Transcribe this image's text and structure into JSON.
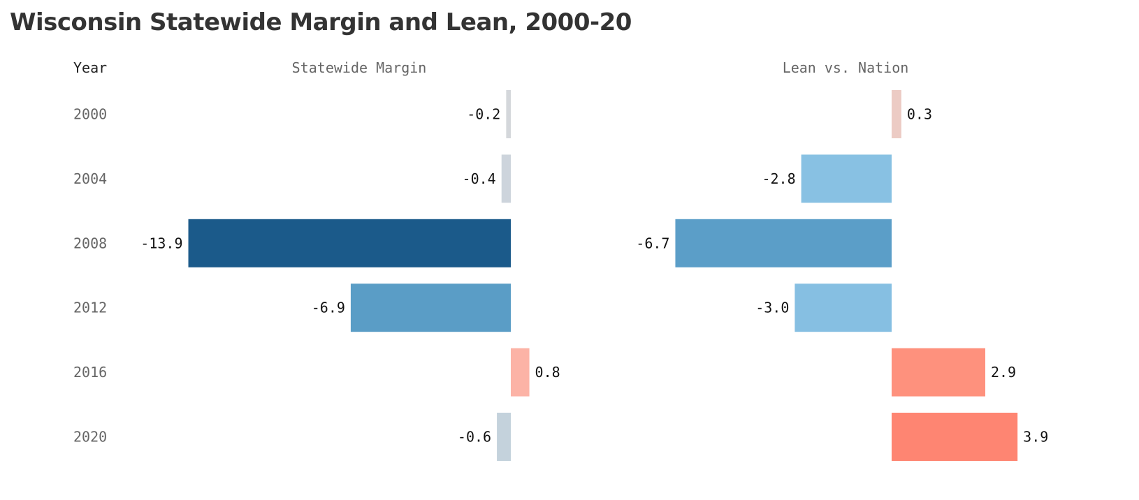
{
  "title": "Wisconsin Statewide Margin and Lean, 2000-20",
  "chart_data": {
    "type": "bar",
    "title": "Wisconsin Statewide Margin and Lean, 2000-20",
    "year_header": "Year",
    "categories": [
      "2000",
      "2004",
      "2008",
      "2012",
      "2016",
      "2020"
    ],
    "series": [
      {
        "name": "Statewide Margin",
        "values": [
          -0.2,
          -0.4,
          -13.9,
          -6.9,
          0.8,
          -0.6
        ],
        "labels": [
          "-0.2",
          "-0.4",
          "-13.9",
          "-6.9",
          "0.8",
          "-0.6"
        ],
        "colors": [
          "#d4d7db",
          "#cdd4dc",
          "#1b5a8a",
          "#5a9dc6",
          "#fcb3a6",
          "#c4d2dc"
        ]
      },
      {
        "name": "Lean vs. Nation",
        "values": [
          0.3,
          -2.8,
          -6.7,
          -3.0,
          2.9,
          3.9
        ],
        "labels": [
          "0.3",
          "-2.8",
          "-6.7",
          "-3.0",
          "2.9",
          "3.9"
        ],
        "colors": [
          "#eccbc4",
          "#88c1e3",
          "#5b9ec8",
          "#86bfe2",
          "#fe917d",
          "#fe8572"
        ]
      }
    ]
  }
}
